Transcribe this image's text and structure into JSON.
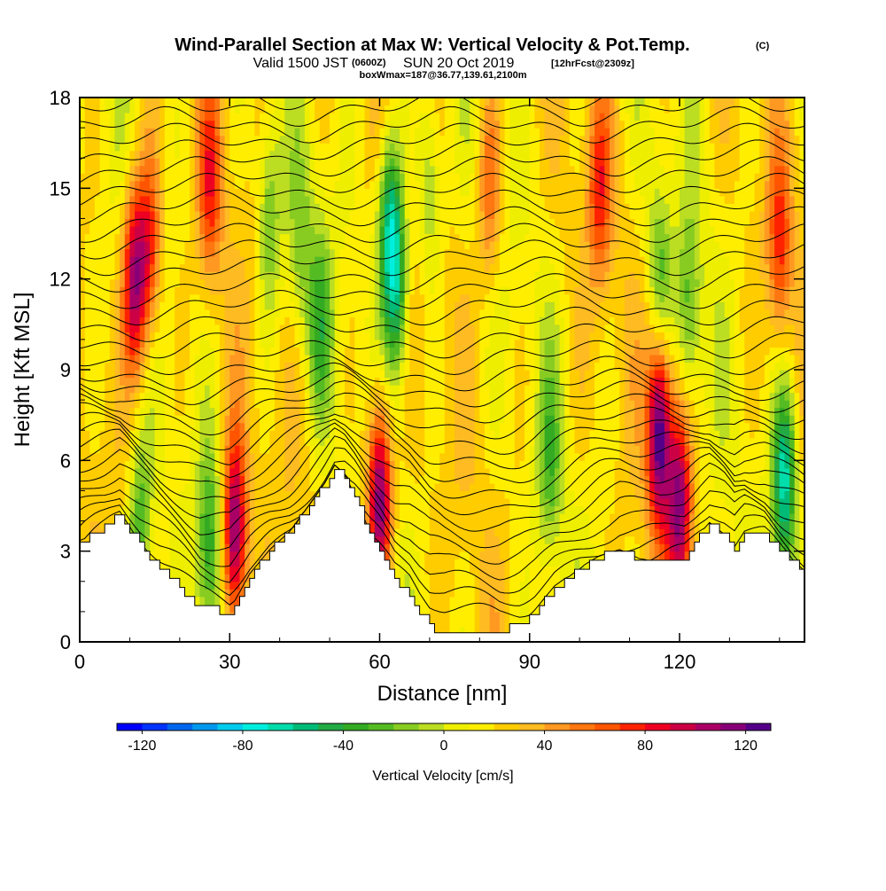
{
  "header": {
    "title_main": "Wind-Parallel Section at Max W: Vertical Velocity & Pot.Temp.",
    "title_tag": "(C)",
    "subtitle_a": "Valid 1500 JST",
    "subtitle_b": "(0600Z)",
    "subtitle_c": "SUN 20 Oct 2019",
    "subtitle_d": "[12hrFcst@2309z]",
    "subtitle_line3": "boxWmax=187@36.77,139.61,2100m"
  },
  "chart_data": {
    "type": "heatmap",
    "title": "Wind-Parallel Section at Max W: Vertical Velocity & Pot.Temp.",
    "xlabel": "Distance [nm]",
    "ylabel": "Height [Kft MSL]",
    "xlim": [
      0,
      145
    ],
    "ylim": [
      0,
      18
    ],
    "x_ticks": [
      0,
      30,
      60,
      90,
      120
    ],
    "y_ticks": [
      0,
      3,
      6,
      9,
      12,
      15,
      18
    ],
    "fill_variable": "Vertical Velocity [cm/s]",
    "contour_variable": "Potential Temperature",
    "colorbar": {
      "label": "Vertical Velocity [cm/s]",
      "ticks": [
        -120,
        -80,
        -40,
        0,
        40,
        80,
        120
      ],
      "range": [
        -130,
        130
      ],
      "step": 10,
      "colors": [
        "#0000ff",
        "#0033ff",
        "#0066ee",
        "#0099ee",
        "#00ccee",
        "#00eedd",
        "#00ddaa",
        "#00bb77",
        "#22aa44",
        "#33aa22",
        "#55bb22",
        "#88cc22",
        "#bbdd22",
        "#eeee00",
        "#ffee00",
        "#ffcc00",
        "#ffbb22",
        "#ff9922",
        "#ff7711",
        "#ff5500",
        "#ff2200",
        "#ee0022",
        "#cc0044",
        "#aa0066",
        "#880077",
        "#550088"
      ]
    },
    "terrain_height": [
      [
        0,
        3.3
      ],
      [
        5,
        3.8
      ],
      [
        8,
        4.2
      ],
      [
        12,
        3.2
      ],
      [
        16,
        2.4
      ],
      [
        20,
        1.8
      ],
      [
        24,
        1.1
      ],
      [
        30,
        1.0
      ],
      [
        34,
        2.2
      ],
      [
        38,
        3.0
      ],
      [
        42,
        3.6
      ],
      [
        46,
        4.5
      ],
      [
        49,
        5.2
      ],
      [
        51,
        5.8
      ],
      [
        53,
        5.5
      ],
      [
        55,
        4.8
      ],
      [
        58,
        3.6
      ],
      [
        60,
        3.0
      ],
      [
        63,
        2.0
      ],
      [
        66,
        1.6
      ],
      [
        68,
        1.0
      ],
      [
        70,
        0.5
      ],
      [
        73,
        0.3
      ],
      [
        77,
        0.3
      ],
      [
        84,
        0.3
      ],
      [
        88,
        0.6
      ],
      [
        91,
        1.0
      ],
      [
        95,
        1.8
      ],
      [
        100,
        2.4
      ],
      [
        104,
        2.8
      ],
      [
        108,
        3.0
      ],
      [
        112,
        2.7
      ],
      [
        116,
        2.6
      ],
      [
        121,
        2.8
      ],
      [
        124,
        3.5
      ],
      [
        126,
        3.9
      ],
      [
        129,
        3.5
      ],
      [
        131,
        3.0
      ],
      [
        133,
        3.5
      ],
      [
        137,
        3.5
      ],
      [
        140,
        3.0
      ],
      [
        143,
        2.6
      ],
      [
        145,
        2.3
      ]
    ],
    "w_features": [
      {
        "x": 11,
        "y": 12,
        "w_cms": 90
      },
      {
        "x": 14,
        "y": 13,
        "w_cms": 60
      },
      {
        "x": 31,
        "y": 3.5,
        "w_cms": 100
      },
      {
        "x": 60,
        "y": 4.8,
        "w_cms": 110
      },
      {
        "x": 116,
        "y": 7.0,
        "w_cms": 110
      },
      {
        "x": 120,
        "y": 4.5,
        "w_cms": 90
      },
      {
        "x": 62,
        "y": 14,
        "w_cms": -70
      },
      {
        "x": 63.5,
        "y": 11.5,
        "w_cms": -60
      },
      {
        "x": 48,
        "y": 10.5,
        "w_cms": -40
      },
      {
        "x": 141,
        "y": 5.3,
        "w_cms": -80
      },
      {
        "x": 116,
        "y": 12,
        "w_cms": -40
      },
      {
        "x": 122,
        "y": 11,
        "w_cms": -40
      },
      {
        "x": 26,
        "y": 3.0,
        "w_cms": -50
      },
      {
        "x": 12,
        "y": 3.5,
        "w_cms": -50
      },
      {
        "x": 38,
        "y": 14,
        "w_cms": -40
      },
      {
        "x": 44,
        "y": 13,
        "w_cms": -30
      },
      {
        "x": 70,
        "y": 15,
        "w_cms": -35
      },
      {
        "x": 94,
        "y": 6.0,
        "w_cms": -35
      },
      {
        "x": 104,
        "y": 15,
        "w_cms": 50
      },
      {
        "x": 140,
        "y": 13,
        "w_cms": 50
      },
      {
        "x": 26,
        "y": 15,
        "w_cms": 50
      },
      {
        "x": 82,
        "y": 15,
        "w_cms": 45
      }
    ]
  }
}
